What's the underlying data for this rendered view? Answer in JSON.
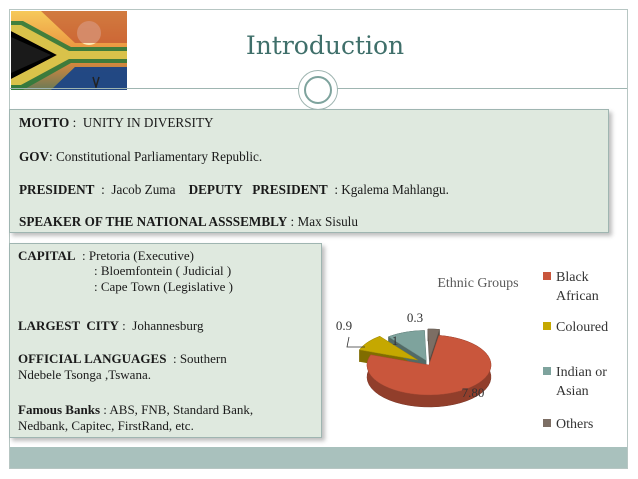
{
  "slide": {
    "title": "Introduction"
  },
  "info_box": {
    "motto_label": "MOTTO",
    "motto_sep": " :  ",
    "motto_value": "UNITY IN DIVERSITY",
    "gov_label": "GOV",
    "gov_value": ": Constitutional Parliamentary Republic.",
    "president_label": "PRESIDENT",
    "president_value": "  :  Jacob Zuma    ",
    "deputy_label": "DEPUTY   PRESIDENT",
    "deputy_value": "  : Kgalema Mahlangu.",
    "speaker_label": "SPEAKER OF THE NATIONAL ASSSEMBLY",
    "speaker_value": " : Max Sisulu"
  },
  "details_box": {
    "capital_label": "CAPITAL",
    "capital_lines": [
      ": Pretoria (Executive)",
      ": Bloemfontein ( Judicial )",
      ": Cape Town (Legislative )"
    ],
    "city_label": "LARGEST  CITY",
    "city_value": ":  Johannesburg",
    "lang_label": "OFFICIAL LANGUAGES",
    "lang_value_1": "  : Southern",
    "lang_value_2": "Ndebele Tsonga ,Tswana.",
    "banks_label": "Famous Banks",
    "banks_value_1": " : ABS, FNB, Standard Bank,",
    "banks_value_2": "Nedbank, Capitec, FirstRand, etc."
  },
  "colors": {
    "accent": "#3f6f6a",
    "box_fill": "#dfe9df",
    "footer": "#a9c1bd"
  },
  "chart_data": {
    "type": "pie",
    "title": "Ethnic Groups",
    "style": "3d-exploded",
    "legend_position": "right",
    "series": [
      {
        "name": "Black African",
        "value": 7.8,
        "label": "7.80",
        "color": "#c9563c"
      },
      {
        "name": "Coloured",
        "value": 0.9,
        "label": "0.9",
        "color": "#c5a800"
      },
      {
        "name": "Indian or Asian",
        "value": 1,
        "label": "1",
        "color": "#7ea39d"
      },
      {
        "name": "Others",
        "value": 0.3,
        "label": "0.3",
        "color": "#7c6e64"
      }
    ],
    "legend": [
      {
        "lines": [
          "Black",
          "African"
        ]
      },
      {
        "lines": [
          "Coloured"
        ]
      },
      {
        "lines": [
          "Indian or",
          "Asian"
        ]
      },
      {
        "lines": [
          "Others"
        ]
      }
    ]
  }
}
